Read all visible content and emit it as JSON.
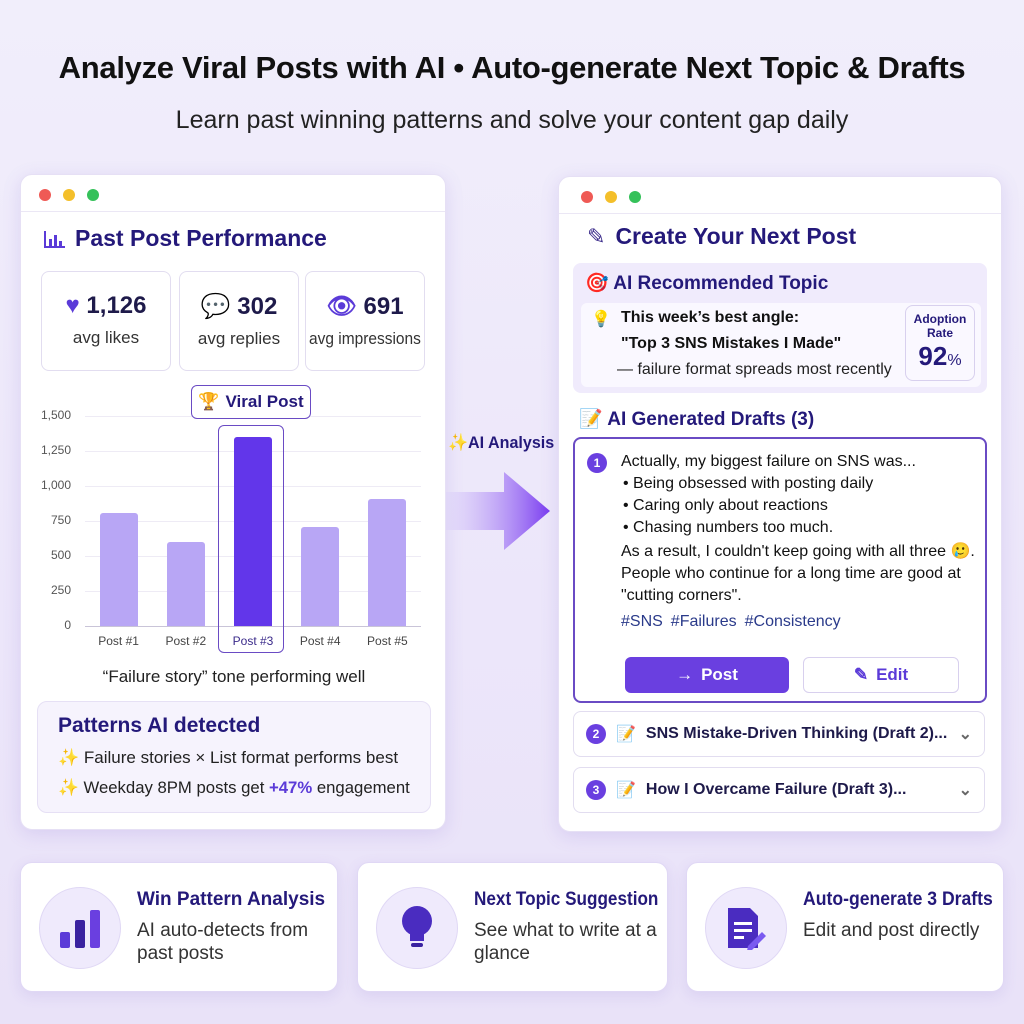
{
  "header": {
    "title": "Analyze Viral Posts with AI • Auto-generate Next Topic & Drafts",
    "subtitle": "Learn past winning patterns and solve your content gap daily"
  },
  "colors": {
    "accent": "#6a3fe0",
    "bar": "#b8a6f5",
    "highlight_bar": "#6236ea",
    "title": "#24197a"
  },
  "left_panel": {
    "title": "Past Post Performance",
    "stats": [
      {
        "icon": "heart-icon",
        "value": "1,126",
        "label": "avg likes"
      },
      {
        "icon": "speech-bubble-icon",
        "value": "302",
        "label": "avg replies"
      },
      {
        "icon": "eye-icon",
        "value": "691",
        "label": "avg impressions"
      }
    ],
    "caption": "“Failure story” tone performing well",
    "patterns": {
      "title": "Patterns AI detected",
      "items": [
        {
          "text": "Failure stories × List format performs best"
        },
        {
          "prefix": "Weekday 8PM posts get ",
          "highlight": "+47%",
          "suffix": " engagement"
        }
      ]
    }
  },
  "chart_data": {
    "type": "bar",
    "categories": [
      "Post #1",
      "Post #2",
      "Post #3",
      "Post #4",
      "Post #5"
    ],
    "values": [
      810,
      600,
      1350,
      710,
      905
    ],
    "ylim": [
      0,
      1500
    ],
    "yticks": [
      "0",
      "250",
      "500",
      "750",
      "1,000",
      "1,250",
      "1,500"
    ],
    "highlight_index": 2,
    "annotation": "Viral Post",
    "grid": true
  },
  "arrow": {
    "label": "AI Analysis"
  },
  "right_panel": {
    "title": "Create Your Next Post",
    "recommend": {
      "title": "AI Recommended Topic",
      "line1": "This week’s best angle:",
      "line2": "\"Top 3 SNS Mistakes I Made\"",
      "line3": "— failure format spreads most recently",
      "rate_label1": "Adoption",
      "rate_label2": "Rate",
      "rate_value": "92",
      "rate_unit": "%"
    },
    "drafts_title": "AI Generated Drafts (3)",
    "draft1": {
      "num": "1",
      "intro": "Actually, my biggest failure on SNS was...",
      "bullets": [
        "• Being obsessed with posting daily",
        "• Caring only about reactions",
        "• Chasing numbers too much."
      ],
      "body": "As a result, I couldn't keep going with all three 🥲. People who continue for a long time are good at \"cutting corners\".",
      "tags": [
        "#SNS",
        "#Failures",
        "#Consistency"
      ],
      "post_label": "Post",
      "edit_label": "Edit"
    },
    "draft2": {
      "num": "2",
      "title": "SNS Mistake-Driven Thinking (Draft 2)..."
    },
    "draft3": {
      "num": "3",
      "title": "How I Overcame Failure (Draft 3)..."
    }
  },
  "features": [
    {
      "icon": "bar-chart-icon",
      "title": "Win Pattern Analysis",
      "desc": "AI auto-detects from past posts"
    },
    {
      "icon": "lightbulb-icon",
      "title": "Next Topic Suggestion",
      "desc": "See what to write at a glance"
    },
    {
      "icon": "document-edit-icon",
      "title": "Auto-generate 3 Drafts",
      "desc": "Edit and post directly"
    }
  ]
}
